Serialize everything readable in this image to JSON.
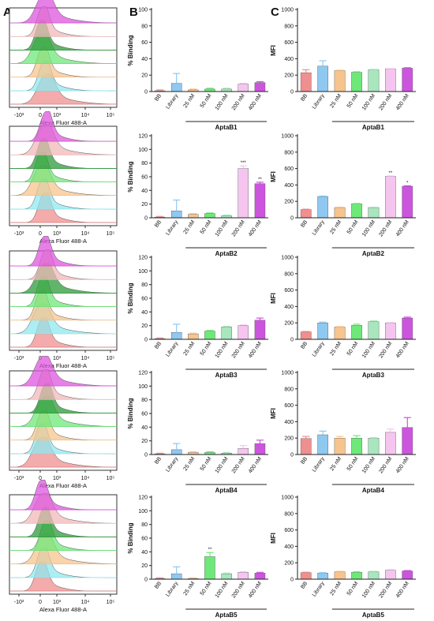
{
  "panel_letters": [
    "A",
    "B",
    "C"
  ],
  "colors": [
    "#f08f8f",
    "#8fc8f0",
    "#f7c48e",
    "#6fe87a",
    "#a8e6bd",
    "#f5c5f0",
    "#cc55dd"
  ],
  "flow": {
    "xlabel": "Alexa Fluor 488-A",
    "ticks": [
      "-10³",
      "0",
      "10³",
      "10⁴",
      "10⁵"
    ],
    "overlay_colors": [
      "#f08f8f",
      "#8fe8ef",
      "#f7c48e",
      "#6fe87a",
      "#2e9a3a",
      "#f0b8b8",
      "#dd55dd"
    ]
  },
  "chart_data": [
    {
      "type": "bar",
      "panel": "B",
      "categories": [
        "BB",
        "Library",
        "25 nM",
        "50 nM",
        "100 nM",
        "200 nM",
        "400 nM"
      ],
      "values": [
        1,
        10,
        2,
        3,
        3,
        9,
        11
      ],
      "errors": [
        1,
        12,
        1,
        1,
        1,
        1,
        1
      ],
      "ylabel": "% Binding",
      "xlabel": "AptaB1",
      "ylim": [
        0,
        100
      ],
      "yticks": [
        0,
        20,
        40,
        60,
        80,
        100
      ],
      "sig": [
        "",
        "",
        "",
        "",
        "",
        "",
        ""
      ]
    },
    {
      "type": "bar",
      "panel": "C",
      "categories": [
        "BB",
        "Library",
        "25 nM",
        "50 nM",
        "100 nM",
        "200 nM",
        "400 nM"
      ],
      "values": [
        230,
        310,
        255,
        235,
        265,
        275,
        285
      ],
      "errors": [
        35,
        65,
        5,
        5,
        5,
        5,
        5
      ],
      "ylabel": "MFI",
      "xlabel": "AptaB1",
      "ylim": [
        0,
        1000
      ],
      "yticks": [
        0,
        200,
        400,
        600,
        800,
        1000
      ],
      "sig": [
        "",
        "",
        "",
        "",
        "",
        "",
        ""
      ]
    },
    {
      "type": "bar",
      "panel": "B",
      "categories": [
        "BB",
        "Library",
        "25 nM",
        "50 nM",
        "100 nM",
        "200 nM",
        "400 nM"
      ],
      "values": [
        1,
        10,
        5,
        6,
        3,
        72,
        50
      ],
      "errors": [
        1,
        16,
        1,
        1,
        1,
        4,
        2
      ],
      "ylabel": "% Binding",
      "xlabel": "AptaB2",
      "ylim": [
        0,
        120
      ],
      "yticks": [
        0,
        20,
        40,
        60,
        80,
        100,
        120
      ],
      "sig": [
        "",
        "",
        "",
        "",
        "",
        "***",
        "**"
      ]
    },
    {
      "type": "bar",
      "panel": "C",
      "categories": [
        "BB",
        "Library",
        "25 nM",
        "50 nM",
        "100 nM",
        "200 nM",
        "400 nM"
      ],
      "values": [
        100,
        260,
        125,
        170,
        125,
        505,
        385
      ],
      "errors": [
        5,
        5,
        5,
        5,
        5,
        5,
        5
      ],
      "ylabel": "MFI",
      "xlabel": "AptaB2",
      "ylim": [
        0,
        1000
      ],
      "yticks": [
        0,
        200,
        400,
        600,
        800,
        1000
      ],
      "sig": [
        "",
        "",
        "",
        "",
        "",
        "**",
        "*"
      ]
    },
    {
      "type": "bar",
      "panel": "B",
      "categories": [
        "BB",
        "Library",
        "25 nM",
        "50 nM",
        "100 nM",
        "200 nM",
        "400 nM"
      ],
      "values": [
        1,
        10,
        8,
        12,
        18,
        20,
        28
      ],
      "errors": [
        1,
        12,
        1,
        1,
        1,
        1,
        3
      ],
      "ylabel": "% Binding",
      "xlabel": "AptaB3",
      "ylim": [
        0,
        120
      ],
      "yticks": [
        0,
        20,
        40,
        60,
        80,
        100,
        120
      ],
      "sig": [
        "",
        "",
        "",
        "",
        "",
        "",
        ""
      ]
    },
    {
      "type": "bar",
      "panel": "C",
      "categories": [
        "BB",
        "Library",
        "25 nM",
        "50 nM",
        "100 nM",
        "200 nM",
        "400 nM"
      ],
      "values": [
        90,
        200,
        150,
        170,
        215,
        200,
        260
      ],
      "errors": [
        5,
        10,
        5,
        15,
        10,
        5,
        10
      ],
      "ylabel": "MFI",
      "xlabel": "AptaB3",
      "ylim": [
        0,
        1000
      ],
      "yticks": [
        0,
        200,
        400,
        600,
        800,
        1000
      ],
      "sig": [
        "",
        "",
        "",
        "",
        "",
        "",
        ""
      ]
    },
    {
      "type": "bar",
      "panel": "B",
      "categories": [
        "BB",
        "Library",
        "25 nM",
        "50 nM",
        "100 nM",
        "200 nM",
        "400 nM"
      ],
      "values": [
        1,
        7,
        3,
        3,
        2,
        9,
        16
      ],
      "errors": [
        1,
        9,
        1,
        1,
        1,
        4,
        5
      ],
      "ylabel": "% Binding",
      "xlabel": "AptaB4",
      "ylim": [
        0,
        120
      ],
      "yticks": [
        0,
        20,
        40,
        60,
        80,
        100,
        120
      ],
      "sig": [
        "",
        "",
        "",
        "",
        "",
        "",
        ""
      ]
    },
    {
      "type": "bar",
      "panel": "C",
      "categories": [
        "BB",
        "Library",
        "25 nM",
        "50 nM",
        "100 nM",
        "200 nM",
        "400 nM"
      ],
      "values": [
        195,
        240,
        200,
        200,
        200,
        270,
        330
      ],
      "errors": [
        25,
        45,
        20,
        30,
        5,
        40,
        120
      ],
      "ylabel": "MFI",
      "xlabel": "AptaB4",
      "ylim": [
        0,
        1000
      ],
      "yticks": [
        0,
        200,
        400,
        600,
        800,
        1000
      ],
      "sig": [
        "",
        "",
        "",
        "",
        "",
        "",
        ""
      ]
    },
    {
      "type": "bar",
      "panel": "B",
      "categories": [
        "BB",
        "Library",
        "25 nM",
        "50 nM",
        "100 nM",
        "200 nM",
        "400 nM"
      ],
      "values": [
        1,
        8,
        1,
        33,
        8,
        10,
        9
      ],
      "errors": [
        1,
        10,
        1,
        6,
        1,
        1,
        1
      ],
      "ylabel": "% Binding",
      "xlabel": "AptaB5",
      "ylim": [
        0,
        120
      ],
      "yticks": [
        0,
        20,
        40,
        60,
        80,
        100,
        120
      ],
      "sig": [
        "",
        "",
        "",
        "**",
        "",
        "",
        ""
      ]
    },
    {
      "type": "bar",
      "panel": "C",
      "categories": [
        "BB",
        "Library",
        "25 nM",
        "50 nM",
        "100 nM",
        "200 nM",
        "400 nM"
      ],
      "values": [
        80,
        75,
        90,
        85,
        90,
        110,
        100
      ],
      "errors": [
        5,
        5,
        5,
        5,
        5,
        5,
        5
      ],
      "ylabel": "MFI",
      "xlabel": "AptaB5",
      "ylim": [
        0,
        1000
      ],
      "yticks": [
        0,
        200,
        400,
        600,
        800,
        1000
      ],
      "sig": [
        "",
        "",
        "",
        "",
        "",
        "",
        ""
      ]
    }
  ]
}
